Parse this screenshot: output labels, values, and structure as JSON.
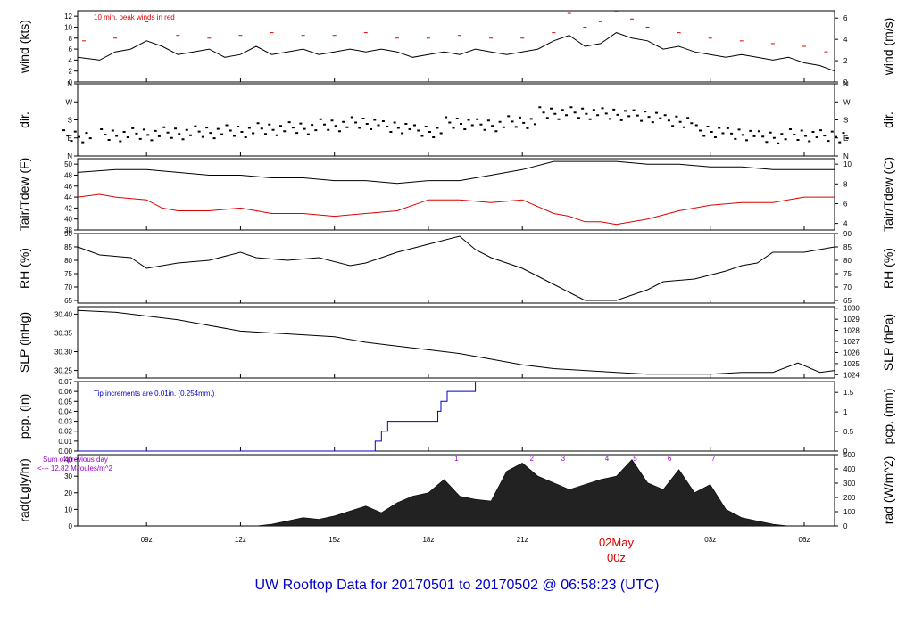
{
  "colors": {
    "black": "#000000",
    "red": "#dd0000",
    "blue": "#0000cc",
    "purple": "#9900cc"
  },
  "title": "UW Rooftop Data for 20170501  to  20170502 @ 06:58:23  (UTC)",
  "chart_data": {
    "type": "line",
    "x_axis": {
      "ticks": [
        "09z",
        "12z",
        "15z",
        "18z",
        "21z",
        "03z",
        "06z"
      ],
      "tick_hours": [
        9,
        12,
        15,
        18,
        21,
        27,
        30
      ],
      "range_hours": [
        6.8,
        30.97
      ],
      "date_label": {
        "day": "02May",
        "time": "00z",
        "hour": 24
      }
    },
    "panels": [
      {
        "id": "wind",
        "ylabel_left": "wind (kts)",
        "ylabel_right": "wind (m/s)",
        "ylim": [
          0,
          13
        ],
        "left_ticks": [
          "0",
          "2",
          "4",
          "6",
          "8",
          "10",
          "12"
        ],
        "right_ticks": [
          "0",
          "2",
          "4",
          "6"
        ],
        "right_values": [
          0,
          2,
          4,
          6
        ],
        "right_factor": 1.94384,
        "annotation": "10 min. peak winds in red",
        "series": [
          {
            "name": "wind",
            "color": "#000000",
            "x": [
              6.8,
              7.5,
              8.0,
              8.5,
              9.0,
              9.5,
              10.0,
              10.5,
              11.0,
              11.5,
              12.0,
              12.5,
              13.0,
              13.5,
              14.0,
              14.5,
              15.0,
              15.5,
              16.0,
              16.5,
              17.0,
              17.5,
              18.0,
              18.5,
              19.0,
              19.5,
              20.0,
              20.5,
              21.0,
              21.5,
              22.0,
              22.5,
              23.0,
              23.5,
              24.0,
              24.5,
              25.0,
              25.5,
              26.0,
              26.5,
              27.0,
              27.5,
              28.0,
              28.5,
              29.0,
              29.5,
              30.0,
              30.5,
              30.97
            ],
            "y": [
              4.5,
              4.0,
              5.5,
              6.0,
              7.5,
              6.5,
              5.0,
              5.5,
              6.0,
              4.5,
              5.0,
              6.5,
              5.0,
              5.5,
              6.0,
              5.0,
              5.5,
              6.0,
              5.5,
              6.0,
              5.5,
              4.5,
              5.0,
              5.5,
              5.0,
              6.0,
              5.5,
              5.0,
              5.5,
              6.0,
              7.5,
              8.5,
              6.5,
              7.0,
              9.0,
              8.0,
              7.5,
              6.0,
              6.5,
              5.5,
              5.0,
              4.5,
              5.0,
              4.5,
              4.0,
              4.5,
              3.5,
              3.0,
              2.0
            ]
          },
          {
            "name": "peak",
            "color": "#dd0000",
            "x": [
              7.0,
              8.0,
              9.0,
              10.0,
              11.0,
              12.0,
              13.0,
              14.0,
              15.0,
              16.0,
              17.0,
              18.0,
              19.0,
              20.0,
              21.0,
              22.0,
              22.5,
              23.0,
              23.5,
              24.0,
              24.5,
              25.0,
              26.0,
              27.0,
              28.0,
              29.0,
              30.0,
              30.7
            ],
            "y": [
              7.5,
              8.0,
              11.0,
              8.5,
              8.0,
              8.5,
              9.0,
              8.5,
              8.5,
              9.0,
              8.0,
              8.0,
              8.5,
              8.0,
              8.0,
              9.0,
              12.5,
              10.0,
              11.0,
              12.8,
              11.5,
              10.0,
              9.0,
              8.0,
              7.5,
              7.0,
              6.5,
              5.5
            ]
          }
        ]
      },
      {
        "id": "dir",
        "ylabel_left": "dir.",
        "ylabel_right": "dir.",
        "left_ticks": [
          "N",
          "E",
          "S",
          "W",
          "N"
        ],
        "right_ticks": [
          "N",
          "E",
          "S",
          "W",
          "N"
        ],
        "ylim": [
          0,
          360
        ],
        "series": [
          {
            "name": "direction",
            "color": "#000000",
            "x": [
              6.8,
              8.0,
              9.0,
              10.0,
              11.0,
              12.0,
              13.0,
              14.0,
              15.0,
              16.0,
              17.0,
              18.0,
              19.0,
              20.0,
              21.0,
              22.0,
              23.0,
              24.0,
              25.0,
              26.0,
              27.0,
              28.0,
              29.0,
              30.0,
              30.97
            ],
            "y": [
              95,
              100,
              105,
              110,
              115,
              120,
              130,
              135,
              150,
              160,
              140,
              120,
              160,
              150,
              165,
              210,
              210,
              205,
              195,
              170,
              120,
              105,
              90,
              100,
              95
            ]
          }
        ]
      },
      {
        "id": "temp",
        "ylabel_left": "Tair/Tdew (F)",
        "ylabel_right": "Tair/Tdew (C)",
        "ylim": [
          38,
          51
        ],
        "left_ticks": [
          "38",
          "40",
          "42",
          "44",
          "46",
          "48",
          "50"
        ],
        "right_ticks": [
          "4",
          "6",
          "8",
          "10"
        ],
        "right_values": [
          4,
          6,
          8,
          10
        ],
        "series": [
          {
            "name": "Tair",
            "color": "#000000",
            "x": [
              6.8,
              8.0,
              9.0,
              10.0,
              11.0,
              12.0,
              13.0,
              14.0,
              15.0,
              16.0,
              17.0,
              18.0,
              19.0,
              20.0,
              21.0,
              22.0,
              23.0,
              24.0,
              25.0,
              26.0,
              27.0,
              28.0,
              29.0,
              30.0,
              30.97
            ],
            "y": [
              48.5,
              49.0,
              49.0,
              48.5,
              48.0,
              48.0,
              47.5,
              47.5,
              47.0,
              47.0,
              46.5,
              47.0,
              47.0,
              48.0,
              49.0,
              50.5,
              50.5,
              50.5,
              50.0,
              50.0,
              49.5,
              49.5,
              49.0,
              49.0,
              49.0
            ]
          },
          {
            "name": "Tdew",
            "color": "#dd0000",
            "x": [
              6.8,
              7.5,
              8.0,
              9.0,
              9.5,
              10.0,
              11.0,
              12.0,
              13.0,
              14.0,
              15.0,
              16.0,
              17.0,
              18.0,
              19.0,
              20.0,
              21.0,
              22.0,
              22.5,
              23.0,
              23.5,
              24.0,
              25.0,
              26.0,
              27.0,
              28.0,
              29.0,
              30.0,
              30.97
            ],
            "y": [
              44.0,
              44.5,
              44.0,
              43.5,
              42.0,
              41.5,
              41.5,
              42.0,
              41.0,
              41.0,
              40.5,
              41.0,
              41.5,
              43.5,
              43.5,
              43.0,
              43.5,
              41.0,
              40.5,
              39.5,
              39.5,
              39.0,
              40.0,
              41.5,
              42.5,
              43.0,
              43.0,
              44.0,
              44.0
            ]
          }
        ]
      },
      {
        "id": "rh",
        "ylabel_left": "RH (%)",
        "ylabel_right": "RH (%)",
        "ylim": [
          64,
          90
        ],
        "left_ticks": [
          "65",
          "70",
          "75",
          "80",
          "85",
          "90"
        ],
        "right_ticks": [
          "65",
          "70",
          "75",
          "80",
          "85",
          "90"
        ],
        "series": [
          {
            "name": "RH",
            "color": "#000000",
            "x": [
              6.8,
              7.5,
              8.5,
              9.0,
              10.0,
              11.0,
              12.0,
              12.5,
              13.5,
              14.5,
              15.5,
              16.0,
              17.0,
              18.0,
              19.0,
              19.5,
              20.0,
              21.0,
              22.0,
              22.5,
              23.0,
              24.0,
              25.0,
              25.5,
              26.5,
              27.5,
              28.0,
              28.5,
              29.0,
              30.0,
              30.97
            ],
            "y": [
              85,
              82,
              81,
              77,
              79,
              80,
              83,
              81,
              80,
              81,
              78,
              79,
              83,
              86,
              89,
              84,
              81,
              77,
              71,
              68,
              65,
              65,
              69,
              72,
              73,
              76,
              78,
              79,
              83,
              83,
              85
            ]
          }
        ]
      },
      {
        "id": "slp",
        "ylabel_left": "SLP (inHg)",
        "ylabel_right": "SLP (hPa)",
        "ylim": [
          30.23,
          30.42
        ],
        "left_ticks": [
          "30.25",
          "30.30",
          "30.35",
          "30.40"
        ],
        "right_ticks": [
          "1024",
          "1025",
          "1026",
          "1027",
          "1028",
          "1029",
          "1030"
        ],
        "right_values": [
          1024,
          1025,
          1026,
          1027,
          1028,
          1029,
          1030
        ],
        "series": [
          {
            "name": "SLP",
            "color": "#000000",
            "x": [
              6.8,
              8.0,
              9.0,
              10.0,
              11.0,
              12.0,
              13.0,
              14.0,
              15.0,
              16.0,
              17.0,
              18.0,
              19.0,
              20.0,
              21.0,
              22.0,
              23.0,
              24.0,
              25.0,
              26.0,
              27.0,
              28.0,
              29.0,
              29.8,
              30.5,
              30.97
            ],
            "y": [
              30.41,
              30.405,
              30.395,
              30.385,
              30.37,
              30.355,
              30.35,
              30.345,
              30.34,
              30.325,
              30.315,
              30.305,
              30.295,
              30.28,
              30.265,
              30.255,
              30.25,
              30.245,
              30.24,
              30.24,
              30.24,
              30.245,
              30.245,
              30.27,
              30.245,
              30.25
            ]
          }
        ]
      },
      {
        "id": "pcp",
        "ylabel_left": "pcp. (in)",
        "ylabel_right": "pcp. (mm)",
        "ylim": [
          0,
          0.07
        ],
        "left_ticks": [
          "0.00",
          "0.01",
          "0.02",
          "0.03",
          "0.04",
          "0.05",
          "0.06",
          "0.07"
        ],
        "right_ticks": [
          "0",
          "0.5",
          "1",
          "1.5"
        ],
        "right_values": [
          0,
          0.5,
          1,
          1.5
        ],
        "annotation": "Tip increments are 0.01in. (0.254mm.)",
        "series": [
          {
            "name": "precip",
            "color": "#0000cc",
            "step": true,
            "x": [
              6.8,
              16.3,
              16.5,
              16.7,
              18.2,
              18.3,
              18.4,
              18.6,
              19.1,
              19.5,
              30.97
            ],
            "y": [
              0.0,
              0.01,
              0.02,
              0.03,
              0.03,
              0.04,
              0.05,
              0.06,
              0.06,
              0.07,
              0.07
            ]
          }
        ]
      },
      {
        "id": "rad",
        "ylabel_left": "rad(Lgly/hr)",
        "ylabel_right": "rad (W/m^2)",
        "ylim": [
          0,
          43
        ],
        "left_ticks": [
          "0",
          "10",
          "20",
          "30",
          "40"
        ],
        "right_ticks": [
          "0",
          "100",
          "200",
          "300",
          "400",
          "500"
        ],
        "right_values": [
          0,
          100,
          200,
          300,
          400,
          500
        ],
        "annotation": [
          "Sum of previous day",
          "<--- 12.82 MJoules/m^2"
        ],
        "markers": [
          {
            "label": "1",
            "x": 18.9
          },
          {
            "label": "2",
            "x": 21.3
          },
          {
            "label": "3",
            "x": 22.3
          },
          {
            "label": "4",
            "x": 23.7
          },
          {
            "label": "5",
            "x": 24.6
          },
          {
            "label": "6",
            "x": 25.7
          },
          {
            "label": "7",
            "x": 27.1
          }
        ],
        "series": [
          {
            "name": "radiation",
            "color": "#000000",
            "area": true,
            "x": [
              12.5,
              13.0,
              13.5,
              14.0,
              14.5,
              15.0,
              15.5,
              16.0,
              16.5,
              17.0,
              17.5,
              18.0,
              18.5,
              19.0,
              19.5,
              20.0,
              20.5,
              21.0,
              21.5,
              22.0,
              22.5,
              23.0,
              23.5,
              24.0,
              24.5,
              25.0,
              25.5,
              26.0,
              26.5,
              27.0,
              27.5,
              28.0,
              28.5,
              29.0,
              29.5
            ],
            "y": [
              0,
              1,
              3,
              5,
              4,
              6,
              9,
              12,
              8,
              14,
              18,
              20,
              28,
              18,
              16,
              15,
              33,
              38,
              30,
              26,
              22,
              25,
              28,
              30,
              40,
              26,
              22,
              34,
              20,
              25,
              10,
              5,
              3,
              1,
              0
            ]
          }
        ]
      }
    ]
  }
}
